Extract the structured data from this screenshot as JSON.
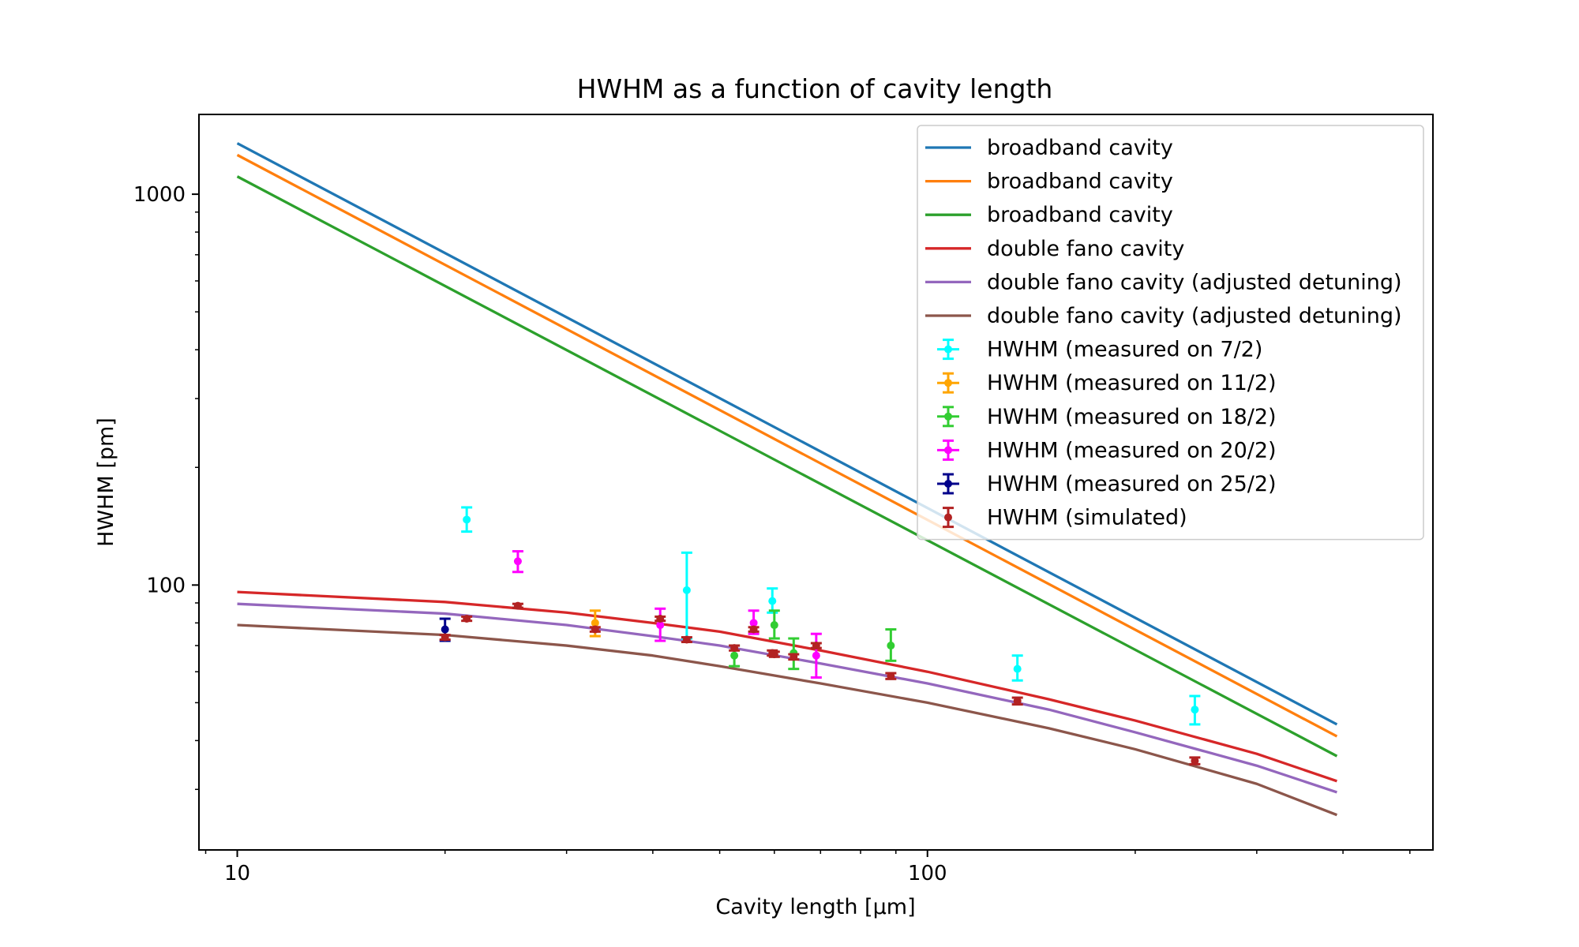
{
  "chart_data": {
    "type": "line",
    "title": "HWHM as a function of cavity length",
    "xlabel": "Cavity length [µm]",
    "ylabel": "HWHM [pm]",
    "xscale": "log",
    "yscale": "log",
    "xlim": [
      8.8,
      540
    ],
    "ylim": [
      21,
      1600
    ],
    "x_ticks": [
      {
        "value": 10,
        "label": "10"
      },
      {
        "value": 100,
        "label": "100"
      }
    ],
    "y_ticks": [
      {
        "value": 100,
        "label": "100"
      },
      {
        "value": 1000,
        "label": "1000"
      }
    ],
    "grid": false,
    "legend_position": "top-right",
    "series": [
      {
        "name": "broadband cavity",
        "kind": "line",
        "color": "#1f77b4",
        "x": [
          10,
          392
        ],
        "y": [
          1350,
          44
        ]
      },
      {
        "name": "broadband cavity",
        "kind": "line",
        "color": "#ff7f0e",
        "x": [
          10,
          392
        ],
        "y": [
          1260,
          41
        ]
      },
      {
        "name": "broadband cavity",
        "kind": "line",
        "color": "#2ca02c",
        "x": [
          10,
          392
        ],
        "y": [
          1110,
          36.5
        ]
      },
      {
        "name": "double fano cavity",
        "kind": "line",
        "color": "#d62728",
        "x": [
          10,
          20,
          30,
          40,
          50,
          70,
          100,
          150,
          200,
          300,
          392
        ],
        "y": [
          96,
          90.5,
          85,
          80,
          76,
          68,
          60,
          51,
          45,
          37,
          31.5
        ]
      },
      {
        "name": "double fano cavity (adjusted detuning)",
        "kind": "line",
        "color": "#9467bd",
        "x": [
          10,
          20,
          30,
          40,
          50,
          70,
          100,
          150,
          200,
          300,
          392
        ],
        "y": [
          89.5,
          84.5,
          79,
          74,
          70,
          63,
          56,
          48,
          42,
          34.5,
          29.5
        ]
      },
      {
        "name": "double fano cavity (adjusted detuning)",
        "kind": "line",
        "color": "#8c564b",
        "x": [
          10,
          20,
          30,
          40,
          50,
          70,
          100,
          150,
          200,
          300,
          392
        ],
        "y": [
          79,
          74.5,
          70,
          66,
          62,
          56,
          50,
          43,
          38,
          31,
          25.8
        ]
      },
      {
        "name": "HWHM (measured on 7/2)",
        "kind": "errorbar",
        "color": "#00ffff",
        "points": [
          {
            "x": 21.5,
            "y": 147,
            "ylo": 137,
            "yhi": 158
          },
          {
            "x": 44.8,
            "y": 97,
            "ylo": 73,
            "yhi": 121
          },
          {
            "x": 59.6,
            "y": 91,
            "ylo": 85,
            "yhi": 98
          },
          {
            "x": 135,
            "y": 61,
            "ylo": 57,
            "yhi": 66
          },
          {
            "x": 244,
            "y": 48,
            "ylo": 44,
            "yhi": 52
          }
        ]
      },
      {
        "name": "HWHM (measured on 11/2)",
        "kind": "errorbar",
        "color": "#ffa500",
        "points": [
          {
            "x": 33,
            "y": 80,
            "ylo": 74,
            "yhi": 86
          }
        ]
      },
      {
        "name": "HWHM (measured on 18/2)",
        "kind": "errorbar",
        "color": "#32cd32",
        "points": [
          {
            "x": 52.5,
            "y": 66,
            "ylo": 62,
            "yhi": 70
          },
          {
            "x": 60,
            "y": 79,
            "ylo": 73,
            "yhi": 86
          },
          {
            "x": 64,
            "y": 67,
            "ylo": 61,
            "yhi": 73
          },
          {
            "x": 88.5,
            "y": 70,
            "ylo": 64,
            "yhi": 77
          }
        ]
      },
      {
        "name": "HWHM (measured on 20/2)",
        "kind": "errorbar",
        "color": "#ff00ff",
        "points": [
          {
            "x": 25.5,
            "y": 115,
            "ylo": 108,
            "yhi": 122
          },
          {
            "x": 41,
            "y": 79,
            "ylo": 72,
            "yhi": 87
          },
          {
            "x": 56,
            "y": 80,
            "ylo": 75,
            "yhi": 86
          },
          {
            "x": 69,
            "y": 66,
            "ylo": 58,
            "yhi": 75
          }
        ]
      },
      {
        "name": "HWHM (measured on 25/2)",
        "kind": "errorbar",
        "color": "#00008b",
        "points": [
          {
            "x": 20,
            "y": 77,
            "ylo": 72,
            "yhi": 82
          }
        ]
      },
      {
        "name": "HWHM (simulated)",
        "kind": "errorbar",
        "color": "#b22222",
        "points": [
          {
            "x": 20,
            "y": 73.5,
            "ylo": 72.5,
            "yhi": 74.5
          },
          {
            "x": 21.5,
            "y": 82,
            "ylo": 81,
            "yhi": 83
          },
          {
            "x": 25.5,
            "y": 88.5,
            "ylo": 87.5,
            "yhi": 89.5
          },
          {
            "x": 33,
            "y": 77,
            "ylo": 76,
            "yhi": 78
          },
          {
            "x": 41,
            "y": 82,
            "ylo": 81,
            "yhi": 83
          },
          {
            "x": 44.8,
            "y": 72.5,
            "ylo": 71.5,
            "yhi": 73.5
          },
          {
            "x": 52.5,
            "y": 69,
            "ylo": 68,
            "yhi": 70
          },
          {
            "x": 56,
            "y": 77,
            "ylo": 76,
            "yhi": 78
          },
          {
            "x": 59.6,
            "y": 67,
            "ylo": 66,
            "yhi": 68
          },
          {
            "x": 60,
            "y": 66.5,
            "ylo": 65.5,
            "yhi": 67.5
          },
          {
            "x": 64,
            "y": 65.5,
            "ylo": 64.5,
            "yhi": 66.5
          },
          {
            "x": 69,
            "y": 70,
            "ylo": 69,
            "yhi": 71
          },
          {
            "x": 88.5,
            "y": 58.5,
            "ylo": 57.5,
            "yhi": 59.5
          },
          {
            "x": 135,
            "y": 50.5,
            "ylo": 49.5,
            "yhi": 51.5
          },
          {
            "x": 244,
            "y": 35.5,
            "ylo": 34.8,
            "yhi": 36.2
          }
        ]
      }
    ]
  }
}
